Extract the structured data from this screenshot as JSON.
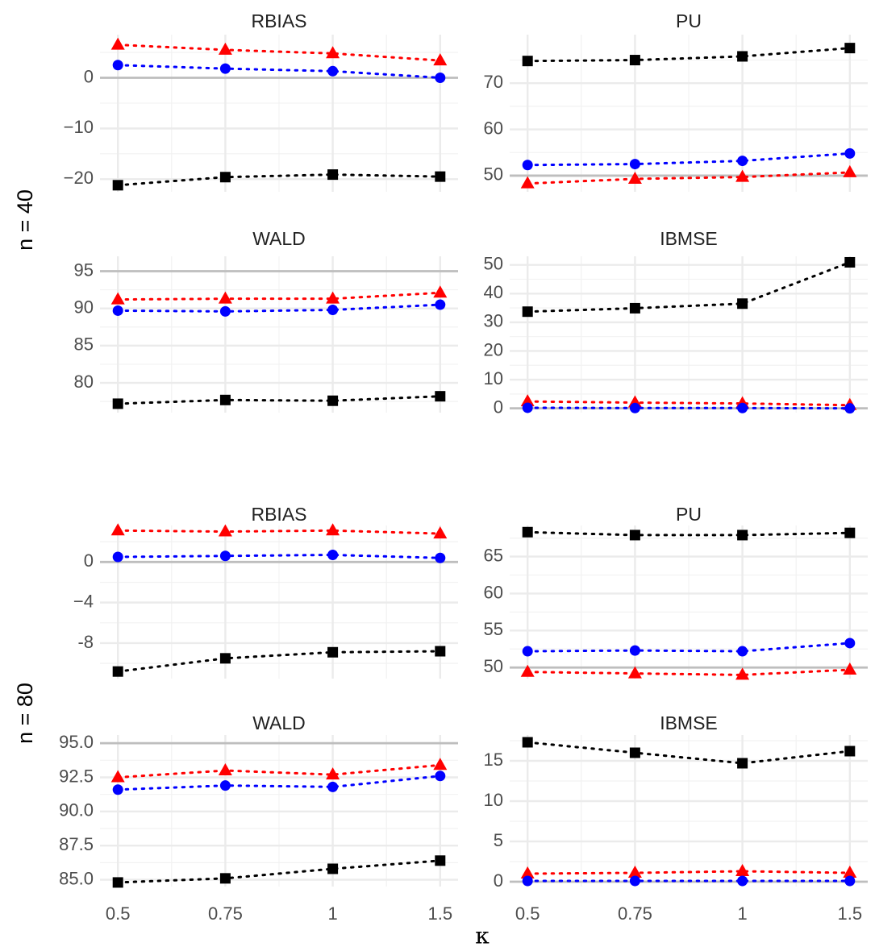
{
  "chart_data": {
    "type": "line",
    "xlabel": "κ",
    "x_ticks": [
      "0.5",
      "0.75",
      "1",
      "1.5"
    ],
    "rows": [
      {
        "label": "n = 40",
        "panels": [
          {
            "title": "RBIAS",
            "ylim": [
              -22.5,
              8.5
            ],
            "y_ticks": [
              {
                "v": 0,
                "t": "0"
              },
              {
                "v": -10,
                "t": "−10"
              },
              {
                "v": -20,
                "t": "−20"
              }
            ],
            "ref": 0,
            "series": [
              {
                "color": "#ff0000",
                "marker": "triangle",
                "values": [
                  6.5,
                  5.5,
                  4.8,
                  3.4
                ]
              },
              {
                "color": "#0000ff",
                "marker": "circle",
                "values": [
                  2.5,
                  1.8,
                  1.3,
                  0.0
                ]
              },
              {
                "color": "#000000",
                "marker": "square",
                "values": [
                  -21.2,
                  -19.6,
                  -19.1,
                  -19.5
                ]
              }
            ]
          },
          {
            "title": "PU",
            "ylim": [
              46.5,
              80.5
            ],
            "y_ticks": [
              {
                "v": 50,
                "t": "50"
              },
              {
                "v": 60,
                "t": "60"
              },
              {
                "v": 70,
                "t": "70"
              }
            ],
            "ref": 50,
            "series": [
              {
                "color": "#000000",
                "marker": "square",
                "values": [
                  74.8,
                  75.0,
                  75.8,
                  77.6
                ]
              },
              {
                "color": "#0000ff",
                "marker": "circle",
                "values": [
                  52.3,
                  52.5,
                  53.2,
                  54.8
                ]
              },
              {
                "color": "#ff0000",
                "marker": "triangle",
                "values": [
                  48.3,
                  49.3,
                  49.7,
                  50.7
                ]
              }
            ]
          }
        ]
      },
      {
        "label": "n = 40",
        "panels": [
          {
            "title": "WALD",
            "ylim": [
              76,
              97
            ],
            "y_ticks": [
              {
                "v": 80,
                "t": "80"
              },
              {
                "v": 85,
                "t": "85"
              },
              {
                "v": 90,
                "t": "90"
              },
              {
                "v": 95,
                "t": "95"
              }
            ],
            "ref": 95,
            "series": [
              {
                "color": "#ff0000",
                "marker": "triangle",
                "values": [
                  91.2,
                  91.3,
                  91.3,
                  92.1
                ]
              },
              {
                "color": "#0000ff",
                "marker": "circle",
                "values": [
                  89.7,
                  89.6,
                  89.8,
                  90.5
                ]
              },
              {
                "color": "#000000",
                "marker": "square",
                "values": [
                  77.2,
                  77.7,
                  77.6,
                  78.2
                ]
              }
            ]
          },
          {
            "title": "IBMSE",
            "ylim": [
              -1.5,
              53
            ],
            "y_ticks": [
              {
                "v": 0,
                "t": "0"
              },
              {
                "v": 10,
                "t": "10"
              },
              {
                "v": 20,
                "t": "20"
              },
              {
                "v": 30,
                "t": "30"
              },
              {
                "v": 40,
                "t": "40"
              },
              {
                "v": 50,
                "t": "50"
              }
            ],
            "ref": 0,
            "series": [
              {
                "color": "#000000",
                "marker": "square",
                "values": [
                  33.7,
                  34.9,
                  36.5,
                  50.9
                ]
              },
              {
                "color": "#ff0000",
                "marker": "triangle",
                "values": [
                  2.4,
                  2.0,
                  1.7,
                  1.1
                ]
              },
              {
                "color": "#0000ff",
                "marker": "circle",
                "values": [
                  0.2,
                  0.1,
                  0.1,
                  0.0
                ]
              }
            ]
          }
        ]
      },
      {
        "label": "n = 80",
        "panels": [
          {
            "title": "RBIAS",
            "ylim": [
              -11.5,
              3.6
            ],
            "y_ticks": [
              {
                "v": 0,
                "t": "0"
              },
              {
                "v": -4,
                "t": "−4"
              },
              {
                "v": -8,
                "t": "-8"
              }
            ],
            "ref": 0,
            "series": [
              {
                "color": "#ff0000",
                "marker": "triangle",
                "values": [
                  3.1,
                  3.0,
                  3.1,
                  2.8
                ]
              },
              {
                "color": "#0000ff",
                "marker": "circle",
                "values": [
                  0.5,
                  0.6,
                  0.7,
                  0.4
                ]
              },
              {
                "color": "#000000",
                "marker": "square",
                "values": [
                  -10.8,
                  -9.5,
                  -8.9,
                  -8.8
                ]
              }
            ]
          },
          {
            "title": "PU",
            "ylim": [
              48.5,
              69.2
            ],
            "y_ticks": [
              {
                "v": 50,
                "t": "50"
              },
              {
                "v": 55,
                "t": "55"
              },
              {
                "v": 60,
                "t": "60"
              },
              {
                "v": 65,
                "t": "65"
              }
            ],
            "ref": 50,
            "series": [
              {
                "color": "#000000",
                "marker": "square",
                "values": [
                  68.3,
                  67.9,
                  67.9,
                  68.2
                ]
              },
              {
                "color": "#0000ff",
                "marker": "circle",
                "values": [
                  52.2,
                  52.3,
                  52.2,
                  53.3
                ]
              },
              {
                "color": "#ff0000",
                "marker": "triangle",
                "values": [
                  49.4,
                  49.2,
                  49.0,
                  49.7
                ]
              }
            ]
          }
        ]
      },
      {
        "label": "n = 80",
        "panels": [
          {
            "title": "WALD",
            "ylim": [
              84.5,
              95.6
            ],
            "y_ticks": [
              {
                "v": 85,
                "t": "85.0"
              },
              {
                "v": 87.5,
                "t": "87.5"
              },
              {
                "v": 90,
                "t": "90.0"
              },
              {
                "v": 92.5,
                "t": "92.5"
              },
              {
                "v": 95,
                "t": "95.0"
              }
            ],
            "ref": 95,
            "series": [
              {
                "color": "#ff0000",
                "marker": "triangle",
                "values": [
                  92.5,
                  93.0,
                  92.7,
                  93.4
                ]
              },
              {
                "color": "#0000ff",
                "marker": "circle",
                "values": [
                  91.6,
                  91.9,
                  91.8,
                  92.6
                ]
              },
              {
                "color": "#000000",
                "marker": "square",
                "values": [
                  84.8,
                  85.1,
                  85.8,
                  86.4
                ]
              }
            ]
          },
          {
            "title": "IBMSE",
            "ylim": [
              -0.6,
              18.2
            ],
            "y_ticks": [
              {
                "v": 0,
                "t": "0"
              },
              {
                "v": 5,
                "t": "5"
              },
              {
                "v": 10,
                "t": "10"
              },
              {
                "v": 15,
                "t": "15"
              }
            ],
            "ref": 0,
            "series": [
              {
                "color": "#000000",
                "marker": "square",
                "values": [
                  17.3,
                  16.0,
                  14.7,
                  16.2
                ]
              },
              {
                "color": "#ff0000",
                "marker": "triangle",
                "values": [
                  1.0,
                  1.1,
                  1.3,
                  1.1
                ]
              },
              {
                "color": "#0000ff",
                "marker": "circle",
                "values": [
                  0.1,
                  0.1,
                  0.1,
                  0.1
                ]
              }
            ]
          }
        ]
      }
    ]
  }
}
